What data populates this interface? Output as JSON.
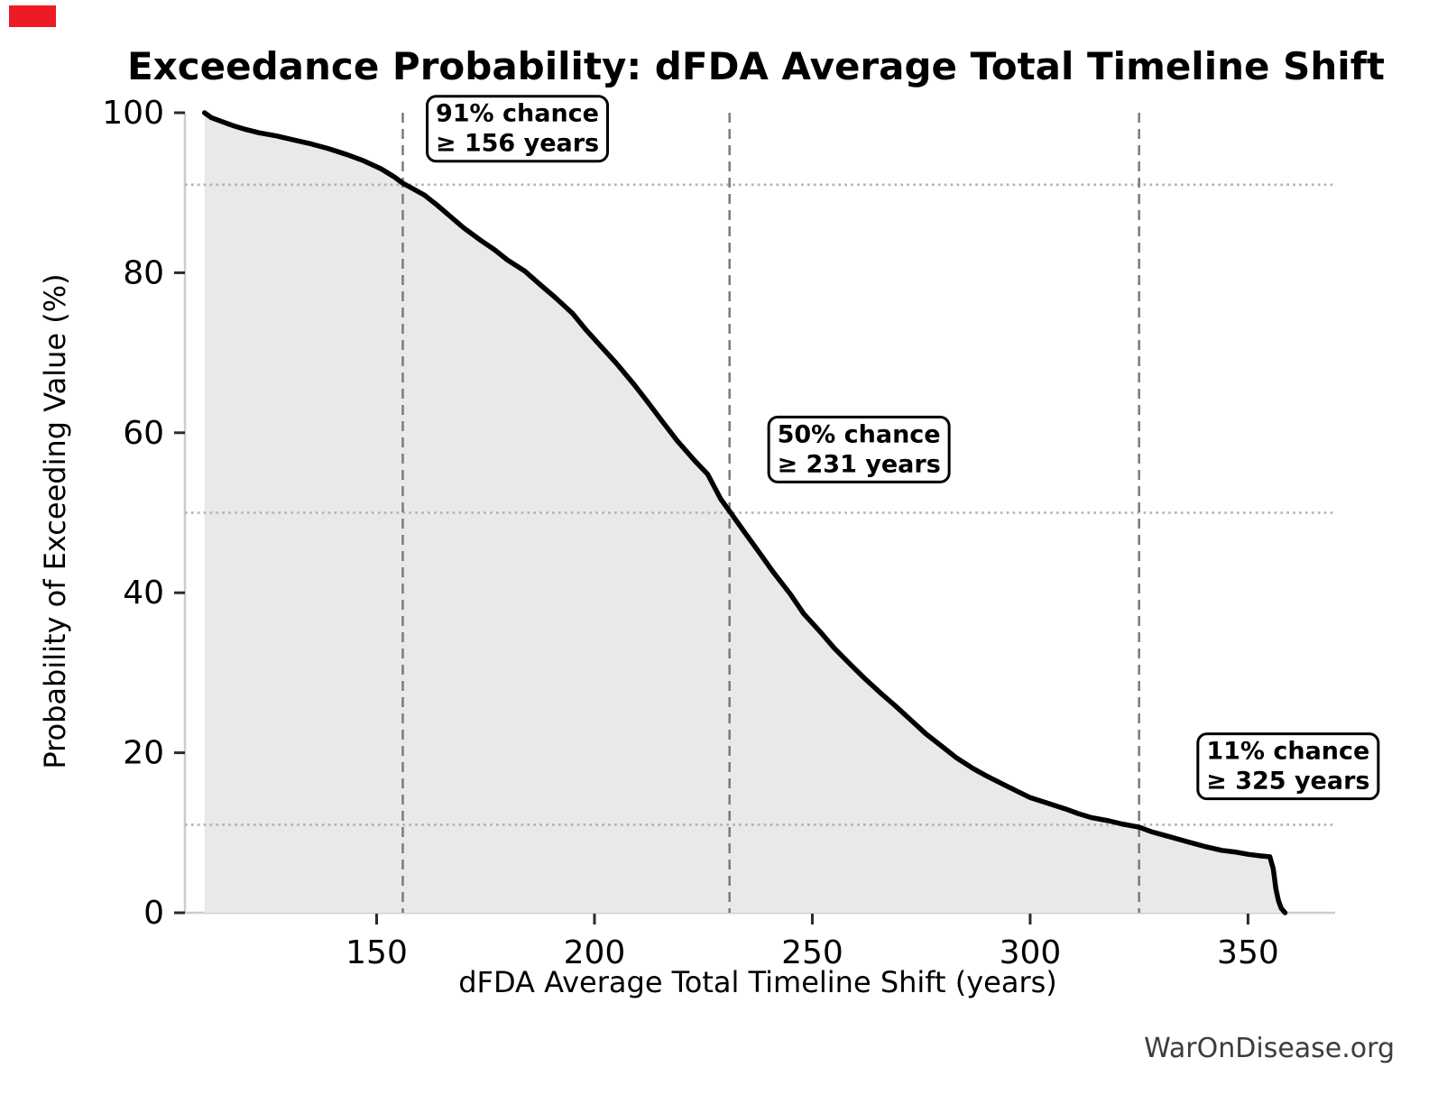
{
  "page": {
    "marker_color": "#ED1C24"
  },
  "chart_data": {
    "type": "area",
    "title": "Exceedance Probability: dFDA Average Total Timeline Shift",
    "xlabel": "dFDA Average Total Timeline Shift (years)",
    "ylabel": "Probability of Exceeding Value (%)",
    "watermark": "WarOnDisease.org",
    "xlim": [
      106,
      370
    ],
    "ylim": [
      0,
      100
    ],
    "x_ticks": [
      150,
      200,
      250,
      300,
      350
    ],
    "y_ticks": [
      0,
      20,
      40,
      60,
      80,
      100
    ],
    "grid": {
      "h_dotted_at": [
        91,
        50,
        11
      ],
      "v_dashed_at": [
        156,
        231,
        325
      ],
      "legend": "none"
    },
    "annotations": [
      {
        "name": "annotation-91pct",
        "lines": [
          "91% chance",
          "≥ 156 years"
        ],
        "anchor_x": 182.3,
        "anchor_y": 98.0
      },
      {
        "name": "annotation-50pct",
        "lines": [
          "50% chance",
          "≥ 231 years"
        ],
        "anchor_x": 260.7,
        "anchor_y": 57.9
      },
      {
        "name": "annotation-11pct",
        "lines": [
          "11% chance",
          "≥ 325 years"
        ],
        "anchor_x": 359.2,
        "anchor_y": 18.3
      }
    ],
    "series": [
      {
        "name": "exceedance-probability-curve",
        "points": [
          [
            110.5,
            100
          ],
          [
            112,
            99.4
          ],
          [
            114,
            99.0
          ],
          [
            117,
            98.4
          ],
          [
            120,
            97.9
          ],
          [
            123,
            97.5
          ],
          [
            127,
            97.1
          ],
          [
            131,
            96.6
          ],
          [
            135,
            96.1
          ],
          [
            139,
            95.5
          ],
          [
            143,
            94.8
          ],
          [
            147,
            94.0
          ],
          [
            151,
            93.0
          ],
          [
            154,
            92.0
          ],
          [
            156,
            91.2
          ],
          [
            158,
            90.6
          ],
          [
            161,
            89.7
          ],
          [
            164,
            88.4
          ],
          [
            167,
            87.0
          ],
          [
            170,
            85.6
          ],
          [
            174,
            84.0
          ],
          [
            177,
            82.9
          ],
          [
            180,
            81.6
          ],
          [
            184,
            80.2
          ],
          [
            188,
            78.3
          ],
          [
            191,
            76.9
          ],
          [
            195,
            74.9
          ],
          [
            198,
            72.9
          ],
          [
            202,
            70.5
          ],
          [
            205,
            68.7
          ],
          [
            209,
            66.1
          ],
          [
            212,
            64.0
          ],
          [
            216,
            61.1
          ],
          [
            219,
            59.0
          ],
          [
            223,
            56.5
          ],
          [
            226,
            54.8
          ],
          [
            229,
            51.7
          ],
          [
            231,
            50.2
          ],
          [
            234,
            47.9
          ],
          [
            238,
            44.9
          ],
          [
            241,
            42.6
          ],
          [
            245,
            39.8
          ],
          [
            248,
            37.4
          ],
          [
            252,
            35.0
          ],
          [
            255,
            33.1
          ],
          [
            259,
            30.9
          ],
          [
            262,
            29.3
          ],
          [
            266,
            27.3
          ],
          [
            269,
            25.9
          ],
          [
            273,
            23.9
          ],
          [
            276,
            22.4
          ],
          [
            280,
            20.7
          ],
          [
            283,
            19.4
          ],
          [
            287,
            18.0
          ],
          [
            290,
            17.1
          ],
          [
            294,
            16.0
          ],
          [
            297,
            15.2
          ],
          [
            300,
            14.4
          ],
          [
            304,
            13.7
          ],
          [
            308,
            13.0
          ],
          [
            311,
            12.4
          ],
          [
            314,
            11.9
          ],
          [
            318,
            11.5
          ],
          [
            321,
            11.1
          ],
          [
            325,
            10.7
          ],
          [
            328,
            10.1
          ],
          [
            332,
            9.5
          ],
          [
            336,
            8.9
          ],
          [
            340,
            8.3
          ],
          [
            344,
            7.8
          ],
          [
            347,
            7.6
          ],
          [
            350,
            7.3
          ],
          [
            353,
            7.1
          ],
          [
            355,
            7.0
          ],
          [
            355.8,
            5.5
          ],
          [
            356.4,
            3.0
          ],
          [
            357,
            1.5
          ],
          [
            357.6,
            0.6
          ],
          [
            358.2,
            0.2
          ],
          [
            358.5,
            0
          ]
        ]
      }
    ],
    "colors": {
      "line": "#000000",
      "fill": "#e9e9e9",
      "vline": "#7a7a7a",
      "hgrid": "#b0b0b0",
      "spine": "#cccccc",
      "tick": "#2a2a2a",
      "annotation_border": "#000000",
      "annotation_fill": "#ffffff",
      "watermark": "#3d3d3d"
    }
  }
}
